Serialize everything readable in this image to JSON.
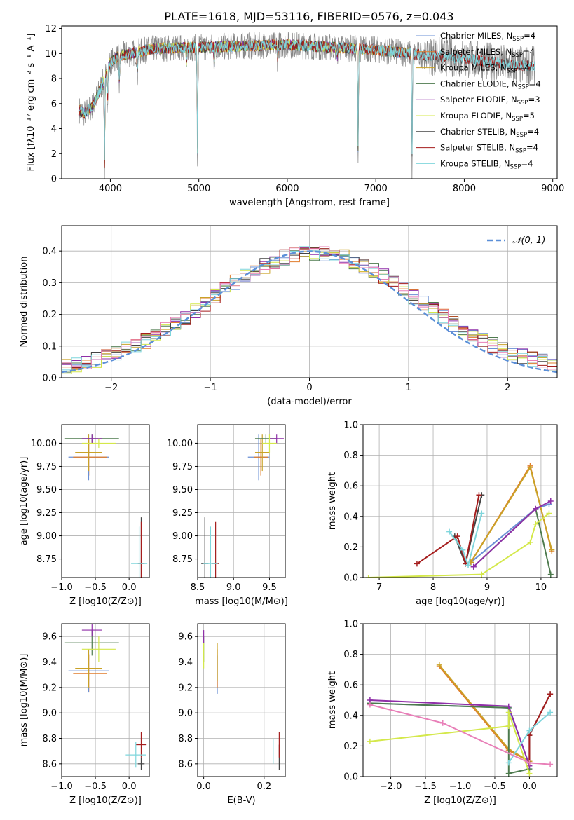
{
  "figure": {
    "title": "PLATE=1618, MJD=53116, FIBERID=0576, z=0.043"
  },
  "colors": {
    "Chabrier MILES": "#6a8fd4",
    "Salpeter MILES": "#e17c2b",
    "Kroupa MILES": "#c9a227",
    "Chabrier ELODIE": "#4d7a4d",
    "Salpeter ELODIE": "#8f2fa8",
    "Kroupa ELODIE": "#d4e84a",
    "Chabrier STELIB": "#444444",
    "Salpeter STELIB": "#a51d1d",
    "Kroupa STELIB": "#7fd6dc",
    "data": "#888888",
    "gaussian": "#5b8fd8",
    "salpeter_mass_weight": "#c87a35",
    "kroupa_elodie_mass": "#d4e84a"
  },
  "chart_data": [
    {
      "id": "spectrum",
      "type": "line",
      "title": "PLATE=1618, MJD=53116, FIBERID=0576, z=0.043",
      "xlabel": "wavelength [Angstrom, rest frame]",
      "ylabel": "Flux [fλ10⁻¹⁷ erg cm⁻² s⁻¹ A⁻¹]",
      "xlim": [
        3450,
        9050
      ],
      "ylim": [
        0,
        12.2
      ],
      "xticks": [
        4000,
        5000,
        6000,
        7000,
        8000,
        9000
      ],
      "yticks": [
        0,
        2,
        4,
        6,
        8,
        10,
        12
      ],
      "grid": false,
      "legend_position": "top-right",
      "legend": [
        {
          "label": "Chabrier MILES, N",
          "sub": "SSP",
          "suffix": "=4",
          "series": "Chabrier MILES"
        },
        {
          "label": "Salpeter MILES, N",
          "sub": "SSP",
          "suffix": "=4",
          "series": "Salpeter MILES"
        },
        {
          "label": "Kroupa MILES, N",
          "sub": "SSP",
          "suffix": "=4",
          "series": "Kroupa MILES"
        },
        {
          "label": "Chabrier ELODIE, N",
          "sub": "SSP",
          "suffix": "=4",
          "series": "Chabrier ELODIE"
        },
        {
          "label": "Salpeter ELODIE, N",
          "sub": "SSP",
          "suffix": "=3",
          "series": "Salpeter ELODIE"
        },
        {
          "label": "Kroupa ELODIE, N",
          "sub": "SSP",
          "suffix": "=5",
          "series": "Kroupa ELODIE"
        },
        {
          "label": "Chabrier STELIB, N",
          "sub": "SSP",
          "suffix": "=4",
          "series": "Chabrier STELIB"
        },
        {
          "label": "Salpeter STELIB, N",
          "sub": "SSP",
          "suffix": "=4",
          "series": "Salpeter STELIB"
        },
        {
          "label": "Kroupa STELIB, N",
          "sub": "SSP",
          "suffix": "=4",
          "series": "Kroupa STELIB"
        }
      ],
      "continuum": {
        "x": [
          3650,
          3700,
          3800,
          3900,
          4000,
          4100,
          4300,
          4500,
          5000,
          5500,
          6000,
          6500,
          7000,
          7500,
          8000,
          8500,
          8800
        ],
        "y": [
          5.5,
          5.2,
          5.8,
          7.4,
          9.3,
          9.8,
          10.1,
          10.4,
          10.5,
          10.6,
          10.7,
          10.5,
          10.3,
          9.9,
          9.6,
          9.1,
          9.0
        ]
      },
      "absorption_features": [
        {
          "x": 3934,
          "depth": 9.0
        },
        {
          "x": 3968,
          "depth": 3.0
        },
        {
          "x": 4101,
          "depth": 2.5
        },
        {
          "x": 4305,
          "depth": 2.0
        },
        {
          "x": 4861,
          "depth": 1.5
        },
        {
          "x": 4985,
          "depth": 10.3
        },
        {
          "x": 5175,
          "depth": 1.5
        },
        {
          "x": 5890,
          "depth": 1.2
        },
        {
          "x": 6563,
          "depth": 1.0
        },
        {
          "x": 6800,
          "depth": 10.0
        },
        {
          "x": 7410,
          "depth": 10.0
        }
      ]
    },
    {
      "id": "residuals",
      "type": "line",
      "xlabel": "(data-model)/error",
      "ylabel": "Normed distribution",
      "xlim": [
        -2.5,
        2.5
      ],
      "ylim": [
        0,
        0.48
      ],
      "xticks": [
        -2,
        -1,
        0,
        1,
        2
      ],
      "yticks": [
        0.0,
        0.1,
        0.2,
        0.3,
        0.4
      ],
      "grid": true,
      "legend_position": "top-right",
      "legend": [
        {
          "label": "𝒩(0, 1)",
          "series": "gaussian"
        }
      ],
      "bin_width": 0.1,
      "bin_start": -2.5
    },
    {
      "id": "age_vs_Z",
      "type": "scatter",
      "xlabel": "Z [log10(Z/Z⊙)]",
      "ylabel": "age  [log10(age/yr)]",
      "xlim": [
        -1.0,
        0.3
      ],
      "ylim": [
        8.55,
        10.2
      ],
      "xticks": [
        -1.0,
        -0.5,
        0.0
      ],
      "yticks": [
        8.75,
        9.0,
        9.25,
        9.5,
        9.75,
        10.0
      ],
      "grid": true,
      "points": [
        {
          "series": "Chabrier MILES",
          "x": -0.6,
          "y": 9.85,
          "xerr": 0.3,
          "yerr": 0.25
        },
        {
          "series": "Salpeter MILES",
          "x": -0.58,
          "y": 9.85,
          "xerr": 0.25,
          "yerr": 0.2
        },
        {
          "series": "Kroupa MILES",
          "x": -0.6,
          "y": 9.9,
          "xerr": 0.2,
          "yerr": 0.2
        },
        {
          "series": "Chabrier ELODIE",
          "x": -0.55,
          "y": 10.05,
          "xerr": 0.4,
          "yerr": 0.05
        },
        {
          "series": "Salpeter ELODIE",
          "x": -0.55,
          "y": 10.05,
          "xerr": 0.15,
          "yerr": 0.05
        },
        {
          "series": "Kroupa ELODIE",
          "x": -0.45,
          "y": 10.0,
          "xerr": 0.25,
          "yerr": 0.05
        },
        {
          "series": "Chabrier STELIB",
          "x": 0.18,
          "y": 8.7,
          "xerr": 0.02,
          "yerr": 0.5
        },
        {
          "series": "Salpeter STELIB",
          "x": 0.18,
          "y": 8.7,
          "xerr": 0.05,
          "yerr": 0.45
        },
        {
          "series": "Kroupa STELIB",
          "x": 0.15,
          "y": 8.7,
          "xerr": 0.12,
          "yerr": 0.4
        }
      ]
    },
    {
      "id": "age_vs_mass",
      "type": "scatter",
      "xlabel": "mass [log10(M/M⊙)]",
      "ylabel": "",
      "xlim": [
        8.5,
        9.72
      ],
      "ylim": [
        8.55,
        10.2
      ],
      "xticks": [
        8.5,
        9.0,
        9.5
      ],
      "yticks": [
        8.75,
        9.0,
        9.25,
        9.5,
        9.75,
        10.0
      ],
      "grid": true,
      "points": [
        {
          "series": "Chabrier MILES",
          "x": 9.35,
          "y": 9.85,
          "xerr": 0.15,
          "yerr": 0.25
        },
        {
          "series": "Salpeter MILES",
          "x": 9.38,
          "y": 9.85,
          "xerr": 0.1,
          "yerr": 0.2
        },
        {
          "series": "Kroupa MILES",
          "x": 9.4,
          "y": 9.9,
          "xerr": 0.1,
          "yerr": 0.2
        },
        {
          "series": "Chabrier ELODIE",
          "x": 9.45,
          "y": 10.05,
          "xerr": 0.15,
          "yerr": 0.05
        },
        {
          "series": "Salpeter ELODIE",
          "x": 9.6,
          "y": 10.05,
          "xerr": 0.1,
          "yerr": 0.05
        },
        {
          "series": "Kroupa ELODIE",
          "x": 9.5,
          "y": 10.0,
          "xerr": 0.1,
          "yerr": 0.1
        },
        {
          "series": "Chabrier STELIB",
          "x": 8.6,
          "y": 8.7,
          "xerr": 0.05,
          "yerr": 0.5
        },
        {
          "series": "Salpeter STELIB",
          "x": 8.75,
          "y": 8.7,
          "xerr": 0.05,
          "yerr": 0.45
        },
        {
          "series": "Kroupa STELIB",
          "x": 8.68,
          "y": 8.7,
          "xerr": 0.1,
          "yerr": 0.4
        }
      ]
    },
    {
      "id": "massweight_vs_age",
      "type": "line",
      "xlabel": "age  [log10(age/yr)]",
      "ylabel": "mass weight",
      "xlim": [
        6.7,
        10.3
      ],
      "ylim": [
        0,
        1.0
      ],
      "xticks": [
        7,
        8,
        9,
        10
      ],
      "yticks": [
        0.0,
        0.2,
        0.4,
        0.6,
        0.8,
        1.0
      ],
      "grid": true,
      "series": [
        {
          "series": "Chabrier MILES",
          "x": [
            8.7,
            9.9,
            10.15
          ],
          "y": [
            0.1,
            0.45,
            0.48
          ]
        },
        {
          "series": "Salpeter MILES",
          "x": [
            8.7,
            9.8,
            10.2
          ],
          "y": [
            0.1,
            0.73,
            0.17
          ]
        },
        {
          "series": "Kroupa MILES",
          "x": [
            8.7,
            9.8,
            10.2
          ],
          "y": [
            0.1,
            0.72,
            0.18
          ]
        },
        {
          "series": "Chabrier ELODIE",
          "x": [
            8.75,
            9.9,
            10.18
          ],
          "y": [
            0.07,
            0.45,
            0.02
          ]
        },
        {
          "series": "Salpeter ELODIE",
          "x": [
            8.75,
            9.9,
            10.18
          ],
          "y": [
            0.07,
            0.45,
            0.5
          ]
        },
        {
          "series": "Kroupa ELODIE",
          "x": [
            6.8,
            8.9,
            9.8,
            9.9,
            10.15
          ],
          "y": [
            0.0,
            0.02,
            0.23,
            0.35,
            0.42
          ]
        },
        {
          "series": "Chabrier STELIB",
          "x": [
            8.4,
            8.6,
            8.9
          ],
          "y": [
            0.27,
            0.09,
            0.54
          ]
        },
        {
          "series": "Salpeter STELIB",
          "x": [
            7.7,
            8.45,
            8.6,
            8.85
          ],
          "y": [
            0.09,
            0.27,
            0.09,
            0.54
          ]
        },
        {
          "series": "Kroupa STELIB",
          "x": [
            8.3,
            8.55,
            8.65,
            8.9
          ],
          "y": [
            0.3,
            0.18,
            0.08,
            0.42
          ]
        }
      ]
    },
    {
      "id": "mass_vs_Z",
      "type": "scatter",
      "xlabel": "Z [log10(Z/Z⊙)]",
      "ylabel": "mass [log10(M/M⊙)]",
      "xlim": [
        -1.0,
        0.3
      ],
      "ylim": [
        8.5,
        9.7
      ],
      "xticks": [
        -1.0,
        -0.5,
        0.0
      ],
      "yticks": [
        8.6,
        8.8,
        9.0,
        9.2,
        9.4,
        9.6
      ],
      "grid": true,
      "points": [
        {
          "series": "Chabrier MILES",
          "x": -0.6,
          "y": 9.33,
          "xerr": 0.3,
          "yerr": 0.17
        },
        {
          "series": "Salpeter MILES",
          "x": -0.58,
          "y": 9.31,
          "xerr": 0.25,
          "yerr": 0.15
        },
        {
          "series": "Kroupa MILES",
          "x": -0.6,
          "y": 9.35,
          "xerr": 0.2,
          "yerr": 0.15
        },
        {
          "series": "Chabrier ELODIE",
          "x": -0.55,
          "y": 9.55,
          "xerr": 0.4,
          "yerr": 0.1
        },
        {
          "series": "Salpeter ELODIE",
          "x": -0.55,
          "y": 9.65,
          "xerr": 0.15,
          "yerr": 0.05
        },
        {
          "series": "Kroupa ELODIE",
          "x": -0.45,
          "y": 9.5,
          "xerr": 0.25,
          "yerr": 0.1
        },
        {
          "series": "Chabrier STELIB",
          "x": 0.18,
          "y": 8.6,
          "xerr": 0.05,
          "yerr": 0.05
        },
        {
          "series": "Salpeter STELIB",
          "x": 0.18,
          "y": 8.75,
          "xerr": 0.08,
          "yerr": 0.1
        },
        {
          "series": "Kroupa STELIB",
          "x": 0.1,
          "y": 8.67,
          "xerr": 0.15,
          "yerr": 0.1
        }
      ]
    },
    {
      "id": "mass_vs_EBV",
      "type": "scatter",
      "xlabel": "E(B-V)",
      "ylabel": "",
      "xlim": [
        -0.02,
        0.27
      ],
      "ylim": [
        8.5,
        9.7
      ],
      "xticks": [
        0.0,
        0.2
      ],
      "yticks": [
        8.6,
        8.8,
        9.0,
        9.2,
        9.4,
        9.6
      ],
      "grid": true,
      "points": [
        {
          "series": "Chabrier MILES",
          "x": 0.045,
          "y": 9.3,
          "xerr": 0,
          "yerr": 0.15
        },
        {
          "series": "Salpeter MILES",
          "x": 0.045,
          "y": 9.35,
          "xerr": 0,
          "yerr": 0.15
        },
        {
          "series": "Kroupa MILES",
          "x": 0.045,
          "y": 9.4,
          "xerr": 0,
          "yerr": 0.15
        },
        {
          "series": "Chabrier ELODIE",
          "x": 0.0,
          "y": 9.5,
          "xerr": 0,
          "yerr": 0.1
        },
        {
          "series": "Salpeter ELODIE",
          "x": 0.0,
          "y": 9.6,
          "xerr": 0,
          "yerr": 0.05
        },
        {
          "series": "Kroupa ELODIE",
          "x": 0.0,
          "y": 9.45,
          "xerr": 0,
          "yerr": 0.1
        },
        {
          "series": "Chabrier STELIB",
          "x": 0.25,
          "y": 8.65,
          "xerr": 0,
          "yerr": 0.1
        },
        {
          "series": "Salpeter STELIB",
          "x": 0.25,
          "y": 8.75,
          "xerr": 0,
          "yerr": 0.1
        },
        {
          "series": "Kroupa STELIB",
          "x": 0.23,
          "y": 8.7,
          "xerr": 0,
          "yerr": 0.1
        }
      ]
    },
    {
      "id": "massweight_vs_Z",
      "type": "line",
      "xlabel": "Z [log10(Z/Z⊙)]",
      "ylabel": "mass weight",
      "xlim": [
        -2.4,
        0.4
      ],
      "ylim": [
        0,
        1.0
      ],
      "xticks": [
        -2.0,
        -1.5,
        -1.0,
        -0.5,
        0.0
      ],
      "yticks": [
        0.0,
        0.2,
        0.4,
        0.6,
        0.8,
        1.0
      ],
      "grid": true,
      "series": [
        {
          "series": "Chabrier MILES",
          "x": [
            -2.3,
            -0.3,
            -0.02
          ],
          "y": [
            0.48,
            0.45,
            0.1
          ]
        },
        {
          "series": "Salpeter MILES",
          "x": [
            -1.3,
            -0.3,
            0.0
          ],
          "y": [
            0.72,
            0.17,
            0.1
          ]
        },
        {
          "series": "Kroupa MILES",
          "x": [
            -1.3,
            -0.3,
            0.0
          ],
          "y": [
            0.73,
            0.18,
            0.1
          ]
        },
        {
          "series": "Chabrier ELODIE",
          "x": [
            -2.3,
            -0.3,
            -0.3,
            0.0
          ],
          "y": [
            0.48,
            0.45,
            0.02,
            0.05
          ]
        },
        {
          "series": "Salpeter ELODIE",
          "x": [
            -2.3,
            -0.3,
            0.0
          ],
          "y": [
            0.5,
            0.46,
            0.07
          ]
        },
        {
          "series": "Kroupa ELODIE",
          "x": [
            -2.3,
            -0.3,
            -0.3,
            0.0
          ],
          "y": [
            0.23,
            0.33,
            0.42,
            0.02
          ]
        },
        {
          "series": "Chabrier STELIB",
          "x": [
            0.0,
            0.0,
            0.3
          ],
          "y": [
            0.09,
            0.27,
            0.54
          ]
        },
        {
          "series": "Salpeter STELIB",
          "x": [
            0.0,
            0.0,
            0.3
          ],
          "y": [
            0.09,
            0.27,
            0.54
          ]
        },
        {
          "series": "Kroupa STELIB",
          "x": [
            -0.3,
            0.0,
            0.3
          ],
          "y": [
            0.09,
            0.3,
            0.42
          ]
        },
        {
          "series": "Kroupa pink",
          "x": [
            -2.3,
            -1.25,
            0.0,
            0.3
          ],
          "y": [
            0.47,
            0.35,
            0.09,
            0.08
          ]
        }
      ]
    }
  ]
}
